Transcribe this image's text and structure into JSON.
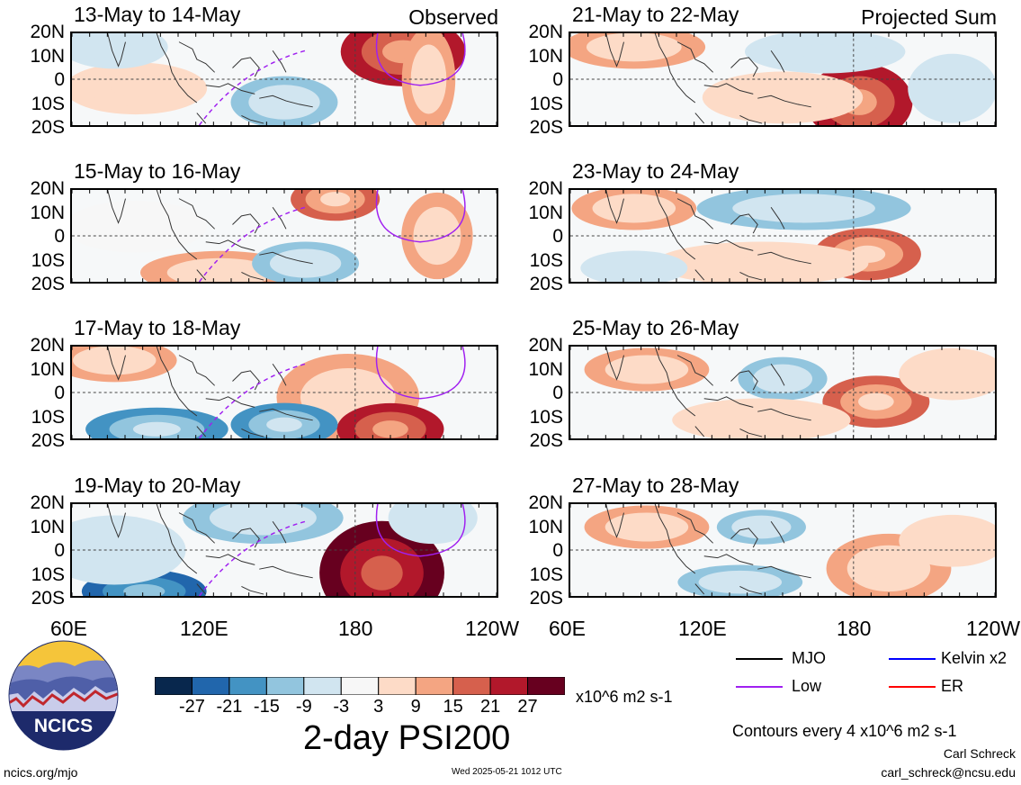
{
  "panels": [
    {
      "col": 0,
      "row": 0,
      "title": "13-May to 14-May",
      "corner": "Observed"
    },
    {
      "col": 0,
      "row": 1,
      "title": "15-May to 16-May",
      "corner": ""
    },
    {
      "col": 0,
      "row": 2,
      "title": "17-May to 18-May",
      "corner": ""
    },
    {
      "col": 0,
      "row": 3,
      "title": "19-May to 20-May",
      "corner": ""
    },
    {
      "col": 1,
      "row": 0,
      "title": "21-May to 22-May",
      "corner": "Projected Sum"
    },
    {
      "col": 1,
      "row": 1,
      "title": "23-May to 24-May",
      "corner": ""
    },
    {
      "col": 1,
      "row": 2,
      "title": "25-May to 26-May",
      "corner": ""
    },
    {
      "col": 1,
      "row": 3,
      "title": "27-May to 28-May",
      "corner": ""
    }
  ],
  "lat_labels": [
    "20N",
    "10N",
    "0",
    "10S",
    "20S"
  ],
  "lon_labels": [
    "60E",
    "120E",
    "180",
    "120W"
  ],
  "colorbar": {
    "ticks": [
      "-27",
      "-21",
      "-15",
      "-9",
      "-3",
      "3",
      "9",
      "15",
      "21",
      "27"
    ],
    "colors": [
      "#08274d",
      "#2166ac",
      "#4393c3",
      "#92c5de",
      "#d1e5f0",
      "#f7f7f7",
      "#fddbc7",
      "#f4a582",
      "#d6604d",
      "#b2182b",
      "#67001f"
    ],
    "units": "x10^6 m2 s-1",
    "title": "2-day PSI200"
  },
  "legend": {
    "items": [
      {
        "label": "MJO",
        "color": "#000000"
      },
      {
        "label": "Kelvin x2",
        "color": "#0000ff"
      },
      {
        "label": "Low",
        "color": "#a020f0"
      },
      {
        "label": "ER",
        "color": "#ff0000"
      }
    ],
    "contour_note": "Contours every 4 x10^6 m2 s-1",
    "author": "Carl Schreck",
    "email": "carl_schreck@ncsu.edu"
  },
  "logo": {
    "text": "NCICS"
  },
  "footer": {
    "url": "ncics.org/mjo",
    "timestamp": "Wed 2025-05-21 1012 UTC"
  }
}
